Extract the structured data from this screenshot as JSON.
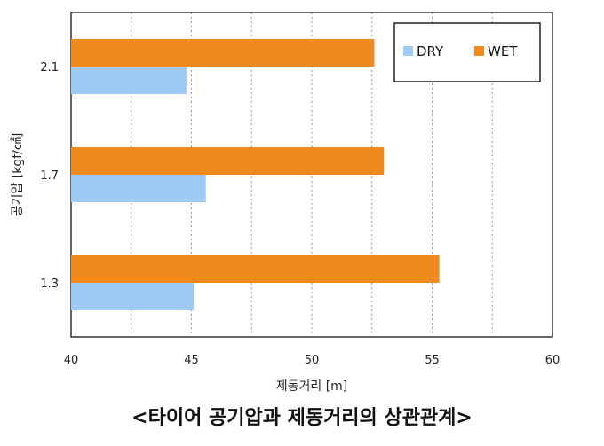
{
  "chart_data": {
    "type": "bar",
    "orientation": "horizontal",
    "title": "<타이어 공기압과 제동거리의 상관관계>",
    "xlabel": "제동거리 [m]",
    "ylabel": "공기압 [kgf/㎠]",
    "categories": [
      "2.1",
      "1.7",
      "1.3"
    ],
    "series": [
      {
        "name": "WET",
        "color": "#F08A1C",
        "values": [
          52.6,
          53.0,
          55.3
        ]
      },
      {
        "name": "DRY",
        "color": "#9DCBF5",
        "values": [
          44.8,
          45.6,
          45.1
        ]
      }
    ],
    "xlim": [
      40,
      60
    ],
    "xticks": [
      "40",
      "45",
      "50",
      "55",
      "60"
    ],
    "grid": true,
    "legend": {
      "placement": "top-right",
      "order": [
        "DRY",
        "WET"
      ]
    }
  }
}
